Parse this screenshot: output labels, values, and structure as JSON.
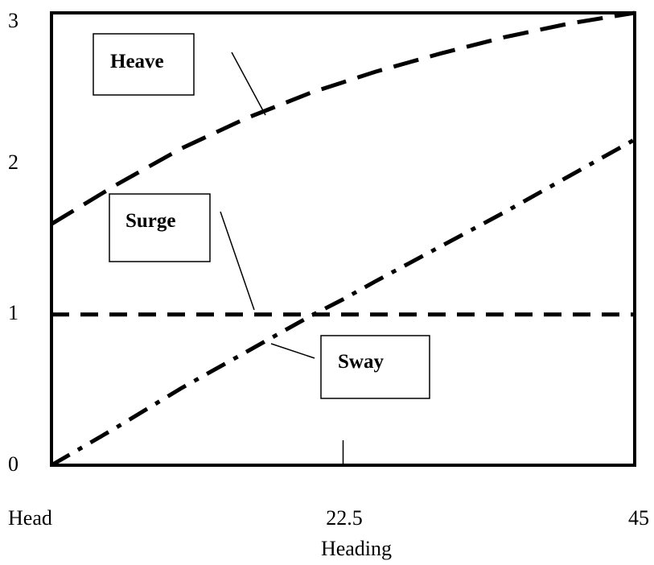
{
  "chart_data": {
    "type": "line",
    "title": "",
    "xlabel": "Heading",
    "ylabel": "",
    "xlim": [
      0,
      45
    ],
    "ylim": [
      0,
      3
    ],
    "x_ticks": [
      {
        "value": 0,
        "label": "Head"
      },
      {
        "value": 22.5,
        "label": "22.5"
      },
      {
        "value": 45,
        "label": "45"
      }
    ],
    "y_ticks": [
      {
        "value": 0,
        "label": "0"
      },
      {
        "value": 1,
        "label": "1"
      },
      {
        "value": 2,
        "label": "2"
      },
      {
        "value": 3,
        "label": "3"
      }
    ],
    "grid": false,
    "series": [
      {
        "name": "Heave",
        "style": "long-dash",
        "x": [
          0,
          5,
          10,
          15,
          20,
          22.5,
          25,
          30,
          35,
          40,
          45
        ],
        "y": [
          1.6,
          1.86,
          2.1,
          2.3,
          2.47,
          2.54,
          2.61,
          2.73,
          2.84,
          2.93,
          3.0
        ]
      },
      {
        "name": "Surge",
        "style": "short-dash",
        "x": [
          0,
          45
        ],
        "y": [
          1.0,
          1.0
        ]
      },
      {
        "name": "Sway",
        "style": "dash-dot",
        "x": [
          0,
          5,
          10,
          15,
          20,
          22.5,
          25,
          30,
          35,
          40,
          45
        ],
        "y": [
          0,
          0.25,
          0.51,
          0.75,
          0.99,
          1.1,
          1.22,
          1.45,
          1.68,
          1.92,
          2.16
        ]
      }
    ]
  }
}
